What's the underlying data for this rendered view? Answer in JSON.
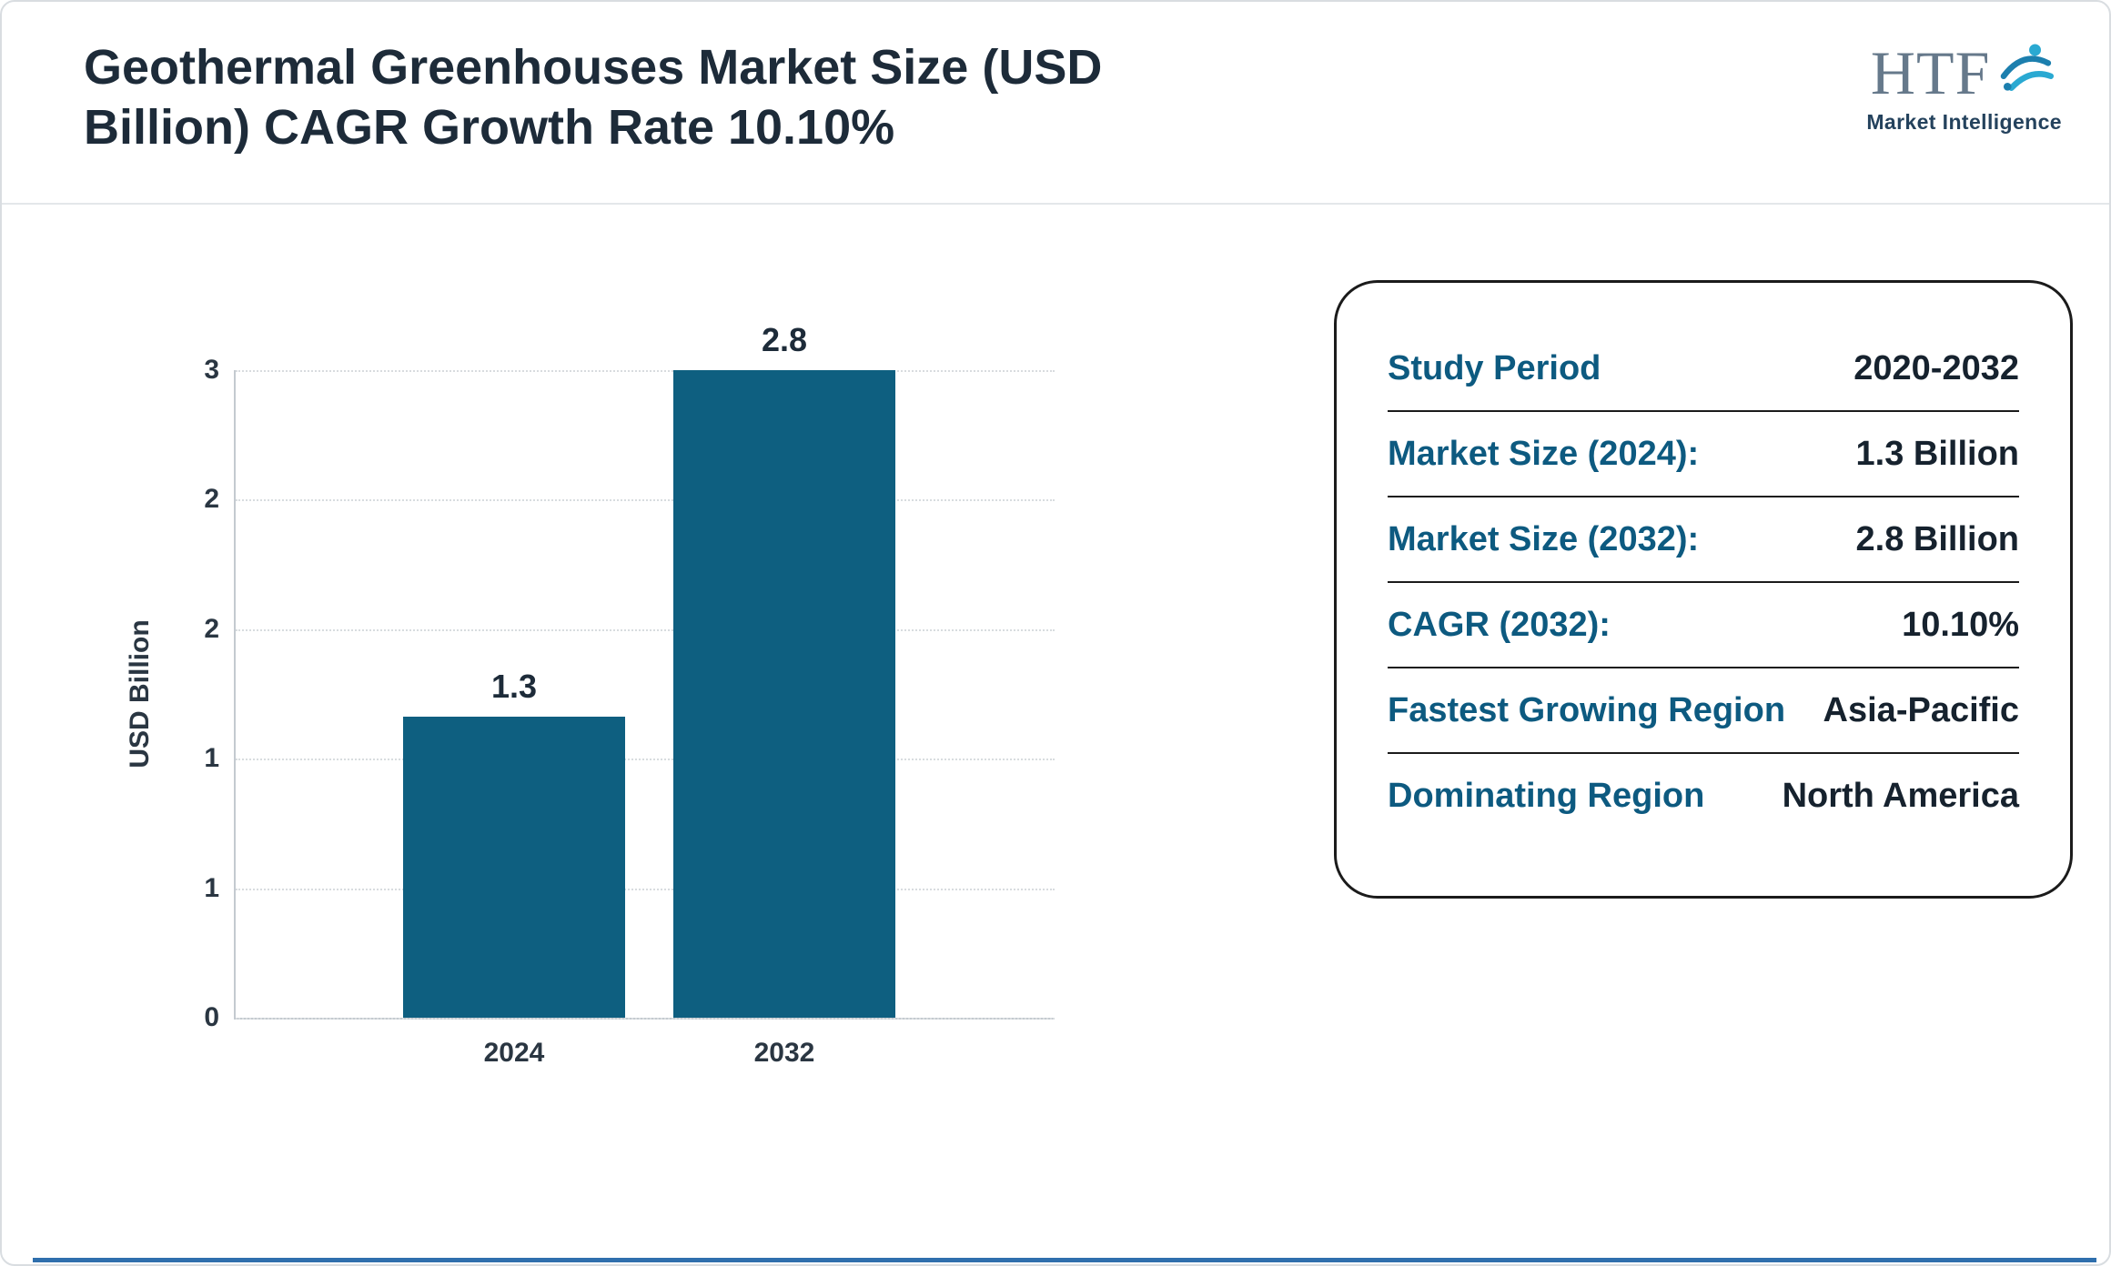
{
  "header": {
    "title_line1": "Geothermal Greenhouses Market Size (USD",
    "title_line2": "Billion) CAGR Growth Rate 10.10%"
  },
  "logo": {
    "brand": "HTF",
    "tagline": "Market Intelligence"
  },
  "chart_data": {
    "type": "bar",
    "title": "Geothermal Greenhouses Market Size (USD Billion) CAGR Growth Rate 10.10%",
    "categories": [
      "2024",
      "2032"
    ],
    "values": [
      1.3,
      2.8
    ],
    "bar_labels": [
      "1.3",
      "2.8"
    ],
    "xlabel": "",
    "ylabel": "USD Billion",
    "ylim": [
      0,
      2.8
    ],
    "yticks": [
      0,
      0.56,
      1.12,
      1.68,
      2.24,
      2.8
    ],
    "ytick_labels": [
      "0",
      "1",
      "1",
      "2",
      "2",
      "3"
    ],
    "grid": "horizontal-dotted",
    "legend": "none",
    "bar_color": "#0e5f80"
  },
  "info_card": {
    "rows": [
      {
        "label": "Study Period",
        "value": "2020-2032"
      },
      {
        "label": "Market Size (2024):",
        "value": "1.3 Billion"
      },
      {
        "label": "Market Size (2032):",
        "value": "2.8 Billion"
      },
      {
        "label": "CAGR (2032):",
        "value": "10.10%"
      },
      {
        "label": "Fastest Growing Region",
        "value": "Asia-Pacific"
      },
      {
        "label": "Dominating Region",
        "value": "North America"
      }
    ],
    "label_color": "#0d5a80",
    "value_color": "#16222e"
  },
  "colors": {
    "title_text": "#1d2b39",
    "bar": "#0e5f80",
    "footer_accent": "#2f6fad"
  }
}
